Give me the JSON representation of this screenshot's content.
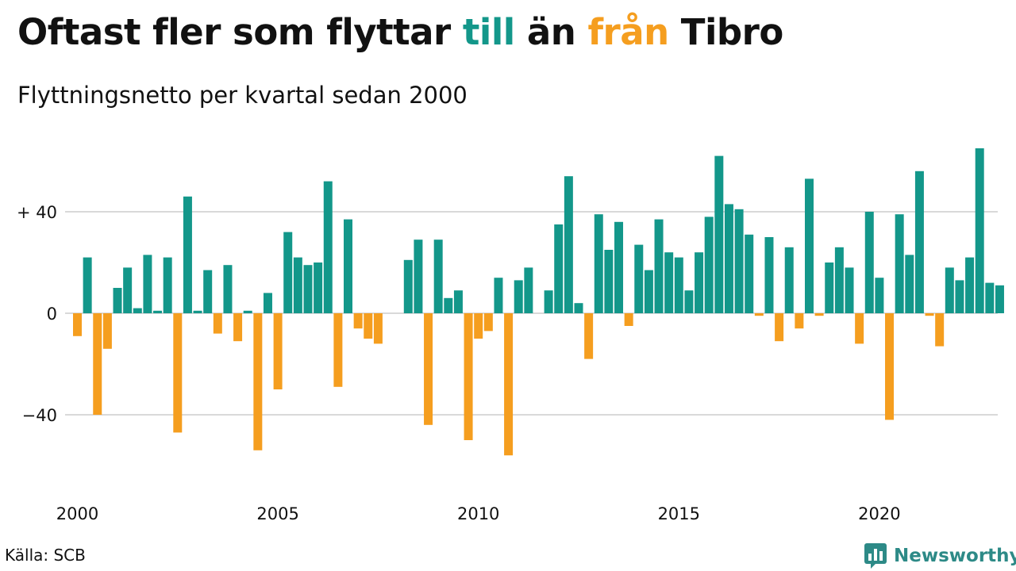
{
  "header": {
    "title_part1": "Oftast fler som flyttar ",
    "title_till": "till",
    "title_part2": " än ",
    "title_fran": "från",
    "title_part3": " Tibro",
    "subtitle": "Flyttningsnetto per kvartal sedan 2000"
  },
  "footer": {
    "source": "Källa: SCB",
    "brand": "Newsworthy"
  },
  "colors": {
    "positive": "#13978a",
    "negative": "#f59e1f",
    "grid": "#d9d9d9",
    "brand": "#2d8a87"
  },
  "chart_data": {
    "type": "bar",
    "x_start": "2000Q1",
    "period": "quarter",
    "ylim": [
      -60,
      70
    ],
    "y_ticks": [
      40,
      0,
      -40
    ],
    "y_tick_labels": [
      "+ 40",
      "0",
      "−40"
    ],
    "x_ticks": [
      "2000",
      "2005",
      "2010",
      "2015",
      "2020"
    ],
    "grid": true,
    "values": [
      -9,
      22,
      -40,
      -14,
      10,
      18,
      2,
      23,
      1,
      22,
      -47,
      46,
      1,
      17,
      -8,
      19,
      -11,
      1,
      -54,
      8,
      -30,
      32,
      22,
      19,
      20,
      52,
      -29,
      37,
      -6,
      -10,
      -12,
      0,
      0,
      21,
      29,
      -44,
      29,
      6,
      9,
      -50,
      -10,
      -7,
      14,
      -56,
      13,
      18,
      0,
      9,
      35,
      54,
      4,
      -18,
      39,
      25,
      36,
      -5,
      27,
      17,
      37,
      24,
      22,
      9,
      24,
      38,
      62,
      43,
      41,
      31,
      -1,
      30,
      -11,
      26,
      -6,
      53,
      -1,
      20,
      26,
      18,
      -12,
      40,
      14,
      -42,
      39,
      23,
      56,
      -1,
      -13,
      18,
      13,
      22,
      65,
      12,
      11
    ]
  }
}
